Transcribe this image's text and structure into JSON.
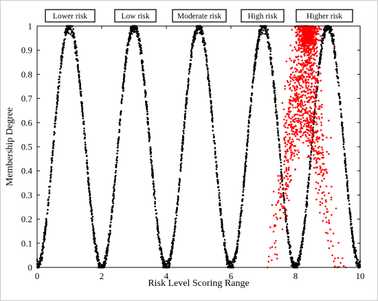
{
  "chart_data": {
    "type": "scatter",
    "title": "",
    "xlabel": "Risk Level Scoring Range",
    "ylabel": "Membership Degree",
    "xlim": [
      0,
      10
    ],
    "ylim": [
      0,
      1
    ],
    "xticks": [
      0,
      2,
      4,
      6,
      8,
      10
    ],
    "yticks": [
      0,
      0.1,
      0.2,
      0.3,
      0.4,
      0.5,
      0.6,
      0.7,
      0.8,
      0.9,
      1
    ],
    "grid": false,
    "category_labels": [
      "Lower risk",
      "Low risk",
      "Moderate risk",
      "High risk",
      "Higher risk"
    ],
    "series": [
      {
        "color": "#000000",
        "shape": "gaussian-like membership curves (scattered points)",
        "peaks": [
          {
            "label": "Lower risk",
            "center": 1,
            "left_base": 0,
            "right_base": 2,
            "peak": 1
          },
          {
            "label": "Low risk",
            "center": 3,
            "left_base": 2,
            "right_base": 4,
            "peak": 1
          },
          {
            "label": "Moderate risk",
            "center": 5,
            "left_base": 4,
            "right_base": 6,
            "peak": 1
          },
          {
            "label": "High risk",
            "center": 7,
            "left_base": 6,
            "right_base": 8,
            "peak": 1
          },
          {
            "label": "Higher risk",
            "center": 9,
            "left_base": 8,
            "right_base": 10,
            "peak": 1
          }
        ]
      },
      {
        "color": "#ff0000",
        "shape": "dense scattered cloud",
        "peaks": [
          {
            "center": 8.4,
            "left_base": 7.1,
            "right_base": 9.4,
            "peak": 1
          }
        ]
      }
    ]
  },
  "colors": {
    "frame": "#000000",
    "background": "#ffffff",
    "primary_points": "#000000",
    "highlight_points": "#ff0000"
  }
}
